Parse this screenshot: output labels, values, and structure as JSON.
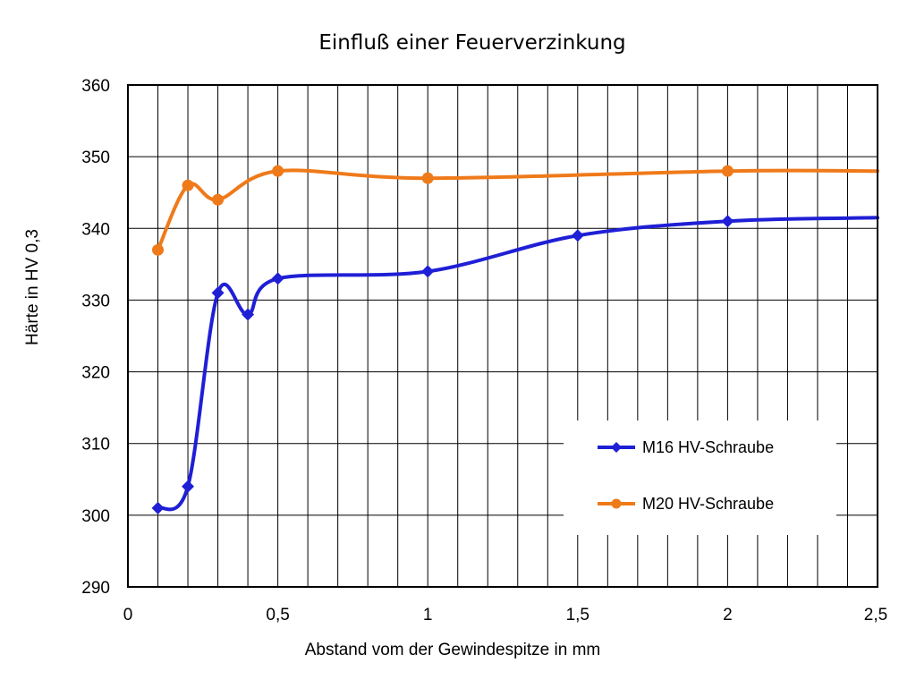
{
  "chart_data": {
    "type": "line",
    "title": "Einfluß einer Feuerverzinkung",
    "xlabel": "Abstand vom der Gewindespitze in mm",
    "ylabel": "Härte in HV 0,3",
    "xlim": [
      0,
      2.5
    ],
    "ylim": [
      290,
      360
    ],
    "x_ticks": [
      0,
      0.5,
      1,
      1.5,
      2,
      2.5
    ],
    "x_tick_labels": [
      "0",
      "0,5",
      "1",
      "1,5",
      "2",
      "2,5"
    ],
    "y_ticks": [
      290,
      300,
      310,
      320,
      330,
      340,
      350,
      360
    ],
    "y_tick_labels": [
      "290",
      "300",
      "310",
      "320",
      "330",
      "340",
      "350",
      "360"
    ],
    "x_minor_step": 0.1,
    "grid": true,
    "legend_position": "bottom-right",
    "series": [
      {
        "name": "M16 HV-Schraube",
        "color": "#1f1fd6",
        "marker": "diamond",
        "points": [
          [
            0.1,
            301
          ],
          [
            0.2,
            304
          ],
          [
            0.3,
            331
          ],
          [
            0.4,
            328
          ],
          [
            0.5,
            333
          ],
          [
            1,
            334
          ],
          [
            1.5,
            339
          ],
          [
            2,
            341
          ],
          [
            2.5,
            341.5
          ]
        ],
        "marker_points": [
          [
            0.1,
            301
          ],
          [
            0.2,
            304
          ],
          [
            0.3,
            331
          ],
          [
            0.4,
            328
          ],
          [
            0.5,
            333
          ],
          [
            1,
            334
          ],
          [
            1.5,
            339
          ],
          [
            2,
            341
          ]
        ]
      },
      {
        "name": "M20 HV-Schraube",
        "color": "#ef7a1a",
        "marker": "circle",
        "points": [
          [
            0.1,
            337
          ],
          [
            0.2,
            346
          ],
          [
            0.3,
            344
          ],
          [
            0.5,
            348
          ],
          [
            1,
            347
          ],
          [
            2,
            348
          ],
          [
            2.5,
            348
          ]
        ],
        "marker_points": [
          [
            0.1,
            337
          ],
          [
            0.2,
            346
          ],
          [
            0.3,
            344
          ],
          [
            0.5,
            348
          ],
          [
            1,
            347
          ],
          [
            2,
            348
          ]
        ]
      }
    ]
  }
}
